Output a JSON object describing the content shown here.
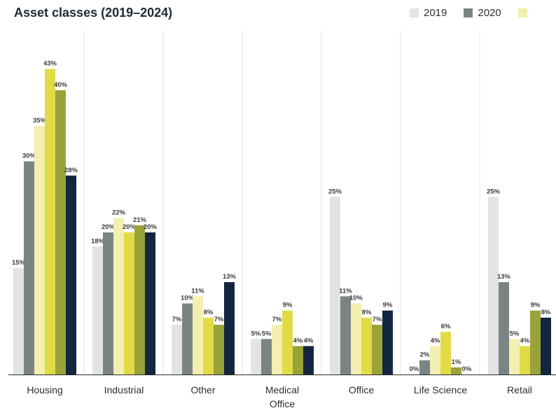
{
  "chart_data": {
    "type": "bar",
    "title": "Asset classes (2019–2024)",
    "categories": [
      "Housing",
      "Industrial",
      "Other",
      "Medical Office",
      "Office",
      "Life Science",
      "Retail"
    ],
    "category_lines": [
      [
        "Housing"
      ],
      [
        "Industrial"
      ],
      [
        "Other"
      ],
      [
        "Medical",
        "Office"
      ],
      [
        "Office"
      ],
      [
        "Life Science"
      ],
      [
        "Retail"
      ]
    ],
    "series": [
      {
        "name": "2019",
        "color": "#e1e4e3",
        "values": [
          15,
          18,
          7,
          5,
          25,
          0,
          25
        ]
      },
      {
        "name": "2020",
        "color": "#7b8485",
        "values": [
          30,
          20,
          10,
          5,
          11,
          2,
          13
        ]
      },
      {
        "name": "",
        "color": "#f2efb0",
        "values": [
          35,
          22,
          11,
          7,
          10,
          4,
          5
        ]
      },
      {
        "name": "",
        "color": "#e1dc45",
        "values": [
          43,
          20,
          8,
          9,
          8,
          6,
          4
        ]
      },
      {
        "name": "",
        "color": "#9aa23a",
        "values": [
          40,
          21,
          7,
          4,
          7,
          1,
          9
        ]
      },
      {
        "name": "",
        "color": "#13253f",
        "values": [
          28,
          20,
          13,
          4,
          9,
          0,
          8
        ]
      }
    ],
    "legend_visible": [
      {
        "name": "2019",
        "color": "#e1e4e3"
      },
      {
        "name": "2020",
        "color": "#7b8485"
      },
      {
        "name": "",
        "color": "#f2efb0"
      }
    ],
    "value_suffix": "%",
    "ylim": [
      0,
      45
    ],
    "xlabel": "",
    "ylabel": "",
    "grid": "vertical separators",
    "legend_position": "top-right"
  }
}
